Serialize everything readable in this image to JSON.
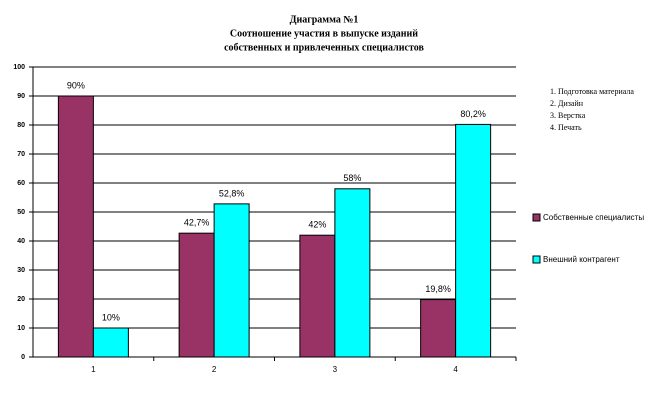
{
  "chart_data": {
    "type": "bar",
    "title": "Диаграмма №1",
    "subtitle": [
      "Соотношение участия в выпуске изданий",
      "собственных и привлеченных специалистов"
    ],
    "annotations": [
      "1. Подготовка материала",
      "2. Дизайн",
      "3. Верстка",
      "4. Печать"
    ],
    "categories": [
      "1",
      "2",
      "3",
      "4"
    ],
    "series": [
      {
        "name": "Собственные специалисты",
        "color": "#993366",
        "values": [
          90,
          42.7,
          42,
          19.8
        ],
        "value_labels": [
          "90%",
          "42,7%",
          "42%",
          "19,8%"
        ]
      },
      {
        "name": "Внешний контрагент",
        "color": "#00ffff",
        "values": [
          10,
          52.8,
          58,
          80.2
        ],
        "value_labels": [
          "10%",
          "52,8%",
          "58%",
          "80,2%"
        ]
      }
    ],
    "ylim": [
      0,
      100
    ],
    "yticks": [
      0,
      10,
      20,
      30,
      40,
      50,
      60,
      70,
      80,
      90,
      100
    ],
    "grid": true
  }
}
